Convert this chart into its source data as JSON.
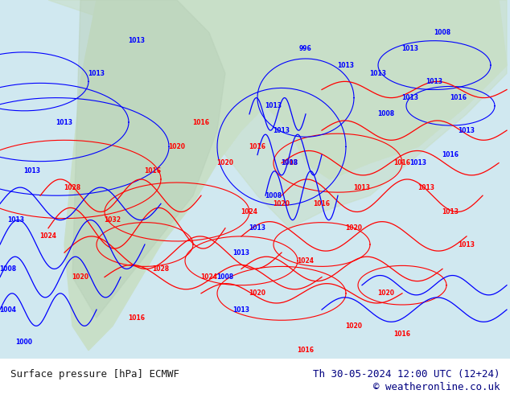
{
  "title_left": "Surface pressure [hPa] ECMWF",
  "title_right": "Th 30-05-2024 12:00 UTC (12+24)",
  "copyright": "© weatheronline.co.uk",
  "bg_color": "#ffffff",
  "map_bg": "#d0e8f0",
  "land_color": "#c8dfc8",
  "text_color_left": "#1a1a1a",
  "text_color_right": "#000080",
  "copyright_color": "#000080",
  "bottom_bar_color": "#ffffff",
  "figsize": [
    6.34,
    4.9
  ],
  "dpi": 100
}
